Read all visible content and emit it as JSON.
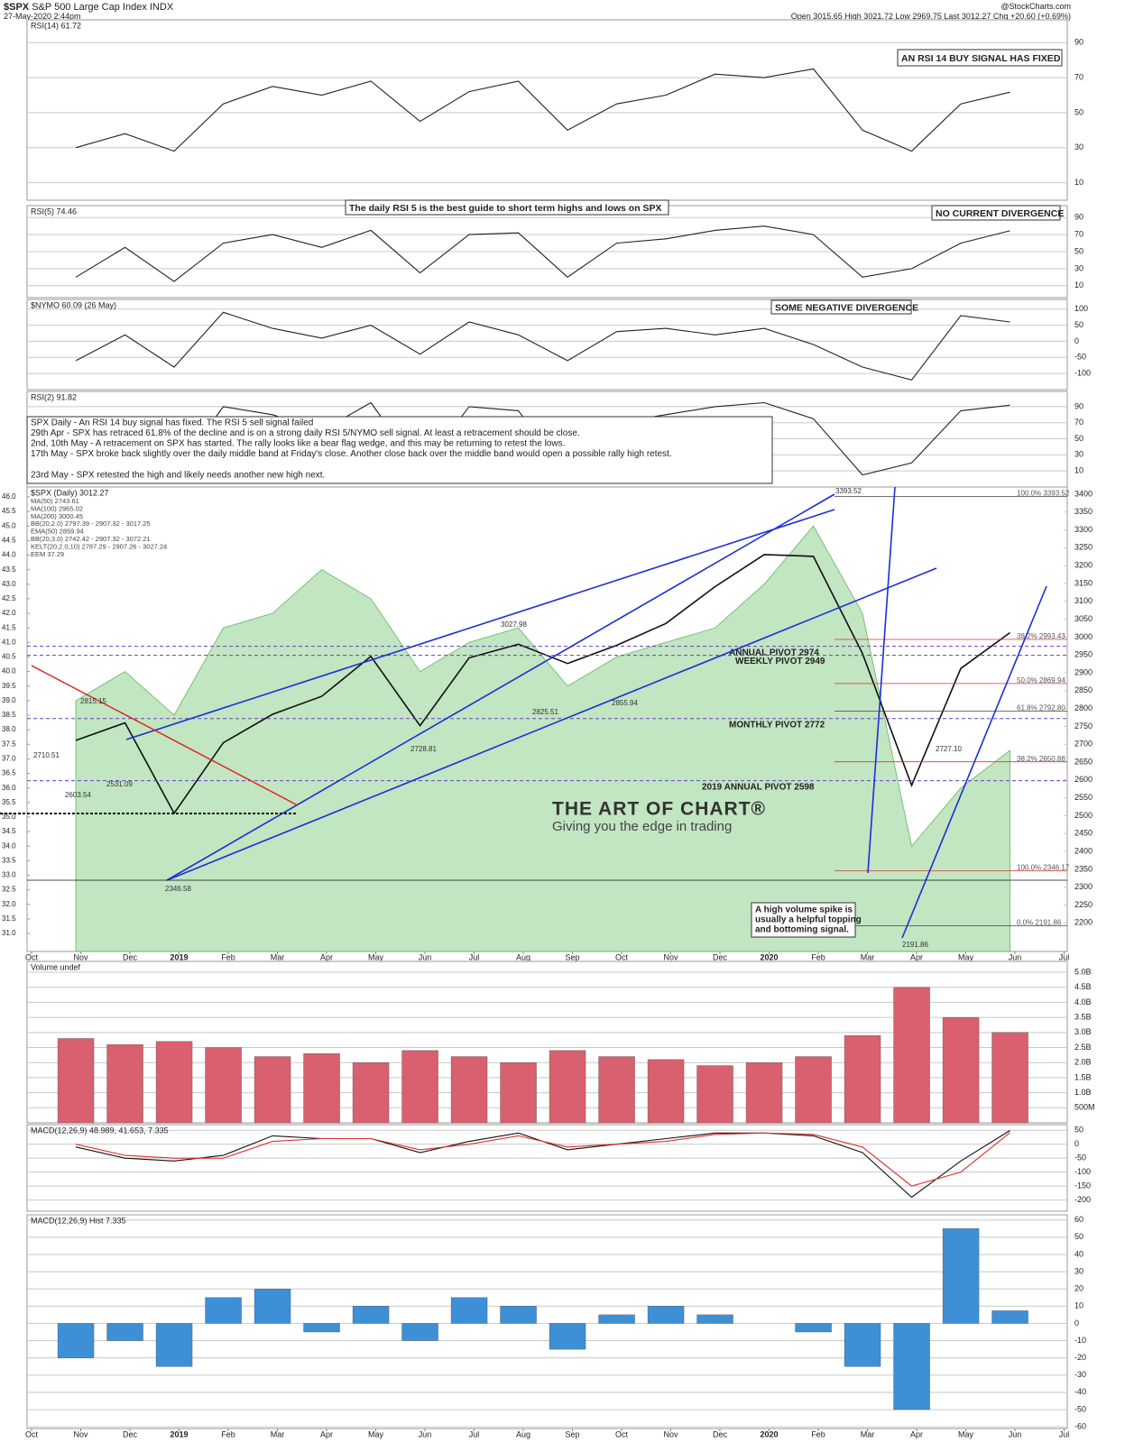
{
  "header": {
    "symbol": "$SPX",
    "name": "S&P 500 Large Cap Index INDX",
    "date": "27-May-2020 2:44pm",
    "source": "@StockCharts.com",
    "quote": "Open 3015.65  High 3021.72  Low 2969.75  Last 3012.27  Chg +20.60 (+0.69%)"
  },
  "commentary": [
    "SPX Daily - An RSI 14 buy signal has fixed. The RSI 5 sell signal failed",
    "29th Apr - SPX has retraced 61.8% of the decline and is on a strong daily RSI 5/NYMO sell signal. At least a retracement should be close.",
    "2nd, 10th May - A retracement on SPX has started. The rally looks like a bear flag wedge, and this may be returning to retest the lows.",
    "17th May - SPX broke back slightly over the daily middle band at Friday's close. Another close back over the middle band would open a possible rally high retest.",
    "23rd May - SPX retested the high and likely needs another new high next."
  ],
  "logo": {
    "title": "THE ART OF CHART®",
    "tagline": "Giving you the edge in trading"
  },
  "chart_data": [
    {
      "type": "line",
      "label": "RSI(14) 61.72",
      "ylim": [
        0,
        103
      ],
      "yticks": [
        10,
        30,
        50,
        70,
        90
      ],
      "grid": true,
      "series": [
        {
          "color": "#222222",
          "values": [
            30,
            38,
            28,
            55,
            65,
            60,
            68,
            45,
            62,
            68,
            40,
            55,
            60,
            72,
            70,
            75,
            40,
            28,
            55,
            61.72,
            null,
            null
          ]
        }
      ],
      "annotations": [
        "AN RSI 14 BUY SIGNAL HAS FIXED"
      ]
    },
    {
      "type": "line",
      "label": "RSI(5) 74.46",
      "ylim": [
        -4,
        104
      ],
      "yticks": [
        10,
        30,
        50,
        70,
        90
      ],
      "grid": true,
      "series": [
        {
          "color": "#222222",
          "values": [
            20,
            55,
            15,
            60,
            70,
            55,
            75,
            25,
            70,
            72,
            20,
            60,
            65,
            75,
            80,
            70,
            20,
            30,
            60,
            74.46,
            null,
            null
          ]
        }
      ],
      "annotations": [
        "The daily RSI 5 is the best guide to short term highs and lows on SPX",
        "NO CURRENT DIVERGENCE"
      ]
    },
    {
      "type": "line",
      "label": "$NYMO 60.09 (26 May)",
      "ylim": [
        -150,
        130
      ],
      "yticks": [
        -100,
        -50,
        0,
        50,
        100
      ],
      "grid": true,
      "series": [
        {
          "color": "#222222",
          "values": [
            -60,
            20,
            -80,
            90,
            40,
            10,
            50,
            -40,
            60,
            20,
            -60,
            30,
            40,
            20,
            40,
            -10,
            -80,
            -120,
            80,
            60.09,
            null,
            null
          ]
        }
      ],
      "annotations": [
        "SOME NEGATIVE DIVERGENCE"
      ]
    },
    {
      "type": "line",
      "label": "RSI(2) 91.82",
      "ylim": [
        -10,
        109
      ],
      "yticks": [
        10,
        30,
        50,
        70,
        90
      ],
      "grid": true,
      "series": [
        {
          "color": "#222222",
          "values": [
            10,
            70,
            5,
            90,
            80,
            60,
            95,
            10,
            90,
            85,
            5,
            70,
            80,
            90,
            95,
            75,
            5,
            20,
            85,
            91.82,
            null,
            null
          ]
        }
      ]
    },
    {
      "type": "line",
      "label": "$SPX (Daily) 3012.27",
      "legend": [
        "MA(50) 2743.61",
        "MA(100) 2965.02",
        "MA(200) 3000.45",
        "BB(20,2.0) 2797.39 - 2907.32 - 3017.25",
        "EMA(50) 2859.94",
        "BB(20,3.0) 2742.42 - 2907.32 - 3072.21",
        "KELT(20,2.0,10) 2787.29 - 2907.26 - 3027.24",
        "EEM 37.29"
      ],
      "categories": [
        "Oct",
        "Nov",
        "Dec",
        "2019",
        "Feb",
        "Mar",
        "Apr",
        "May",
        "Jun",
        "Jul",
        "Aug",
        "Sep",
        "Oct",
        "Nov",
        "Dec",
        "2020",
        "Feb",
        "Mar",
        "Apr",
        "May",
        "Jun",
        "Jul"
      ],
      "ylim": [
        2120,
        3420
      ],
      "yticks": [
        2200,
        2250,
        2300,
        2350,
        2400,
        2450,
        2500,
        2550,
        2600,
        2650,
        2700,
        2750,
        2800,
        2850,
        2900,
        2950,
        3000,
        3050,
        3100,
        3150,
        3200,
        3250,
        3300,
        3350,
        3400
      ],
      "y2lim": [
        30.38,
        46.34
      ],
      "y2ticks": [
        {
          "value": 31,
          "label": "31.0"
        },
        31.5,
        {
          "value": 32,
          "label": "32.0"
        },
        32.5,
        {
          "value": 33,
          "label": "33.0"
        },
        33.5,
        {
          "value": 34,
          "label": "34.0"
        },
        34.5,
        {
          "value": 35,
          "label": "35.0"
        },
        35.5,
        {
          "value": 36,
          "label": "36.0"
        },
        36.5,
        {
          "value": 37,
          "label": "37.0"
        },
        37.5,
        {
          "value": 38,
          "label": "38.0"
        },
        38.5,
        {
          "value": 39,
          "label": "39.0"
        },
        39.5,
        {
          "value": 40,
          "label": "40.0"
        },
        40.5,
        {
          "value": 41,
          "label": "41.0"
        },
        41.5,
        {
          "value": 42,
          "label": "42.0"
        },
        42.5,
        {
          "value": 43,
          "label": "43.0"
        },
        43.5,
        {
          "value": 44,
          "label": "44.0"
        },
        44.5,
        {
          "value": 45,
          "label": "45.0"
        },
        45.5,
        {
          "value": 46,
          "label": "46.0"
        }
      ],
      "grid": false,
      "series": [
        {
          "color": "#8fd08f",
          "axis": "y2",
          "area": true,
          "values": [
            39,
            40,
            38.5,
            41.5,
            42,
            43.5,
            42.5,
            40,
            41,
            41.5,
            39.5,
            40.5,
            41,
            41.5,
            43,
            45,
            42,
            34,
            36,
            37.29,
            null,
            null
          ]
        },
        {
          "color": "#111111",
          "values": [
            2711,
            2760,
            2507,
            2704,
            2784,
            2834,
            2946,
            2752,
            2942,
            2980,
            2926,
            2977,
            3038,
            3141,
            3231,
            3226,
            2954,
            2585,
            2912,
            3012.27,
            null,
            null
          ]
        }
      ],
      "pivots": [
        {
          "label": "ANNUAL PIVOT 2974",
          "value": 2974
        },
        {
          "label": "WEEKLY PIVOT 2949",
          "value": 2949
        },
        {
          "label": "MONTHLY PIVOT 2772",
          "value": 2772
        },
        {
          "label": "2019 ANNUAL PIVOT 2598",
          "value": 2598
        }
      ],
      "fib_levels": [
        {
          "label": "100.0% 3393.52",
          "value": 3393.52
        },
        {
          "label": "38.2% 2993.43",
          "value": 2993.43
        },
        {
          "label": "50.0% 2869.94",
          "value": 2869.94
        },
        {
          "label": "61.8% 2792.80",
          "value": 2792.8
        },
        {
          "label": "38.2% 2650.88",
          "value": 2650.88
        },
        {
          "label": "100.0% 2346.17",
          "value": 2346.17
        },
        {
          "label": "0.0% 2191.86",
          "value": 2191.86
        }
      ],
      "point_labels": [
        "3393.52",
        "2346.58",
        "2191.86",
        "2710.51",
        "2603.54",
        "2531.09",
        "2728.81",
        "3027.98",
        "2825.51",
        "2855.94",
        "2727.10",
        "2815.15"
      ],
      "annotations": [
        "A high volume spike is",
        "usually a helpful topping",
        "and bottoming signal."
      ]
    },
    {
      "type": "bar",
      "label": "Volume undef",
      "ylim": [
        0,
        5.36
      ],
      "yticks": [
        {
          "value": 0.5,
          "label": "500M"
        },
        {
          "value": 1,
          "label": "1.0B"
        },
        {
          "value": 1.5,
          "label": "1.5B"
        },
        {
          "value": 2,
          "label": "2.0B"
        },
        {
          "value": 2.5,
          "label": "2.5B"
        },
        {
          "value": 3,
          "label": "3.0B"
        },
        {
          "value": 3.5,
          "label": "3.5B"
        },
        {
          "value": 4,
          "label": "4.0B"
        },
        {
          "value": 4.5,
          "label": "4.5B"
        },
        {
          "value": 5,
          "label": "5.0B"
        }
      ],
      "grid": true,
      "series": [
        {
          "color": "#d9606e",
          "values": [
            2.8,
            2.6,
            2.7,
            2.5,
            2.2,
            2.3,
            2.0,
            2.4,
            2.2,
            2.0,
            2.4,
            2.2,
            2.1,
            1.9,
            2.0,
            2.2,
            2.9,
            4.5,
            3.5,
            3.0,
            null,
            null
          ]
        }
      ]
    },
    {
      "type": "line",
      "label": "MACD(12,26,9) 48.989, 41.653, 7.335",
      "ylim": [
        -240,
        70
      ],
      "yticks": [
        -200,
        -150,
        -100,
        -50,
        0,
        50
      ],
      "grid": true,
      "series": [
        {
          "color": "#111111",
          "values": [
            -10,
            -50,
            -60,
            -40,
            30,
            20,
            20,
            -30,
            10,
            40,
            -20,
            0,
            20,
            40,
            40,
            30,
            -30,
            -190,
            -60,
            48.989,
            null,
            null
          ]
        },
        {
          "color": "#e03030",
          "values": [
            0,
            -40,
            -50,
            -50,
            10,
            20,
            20,
            -20,
            0,
            30,
            -10,
            0,
            10,
            35,
            40,
            35,
            -10,
            -150,
            -100,
            41.653,
            null,
            null
          ]
        }
      ]
    },
    {
      "type": "bar",
      "label": "MACD(12,26,9) Hist 7.335",
      "categories": [
        "Oct",
        "Nov",
        "Dec",
        "2019",
        "Feb",
        "Mar",
        "Apr",
        "May",
        "Jun",
        "Jul",
        "Aug",
        "Sep",
        "Oct",
        "Nov",
        "Dec",
        "2020",
        "Feb",
        "Mar",
        "Apr",
        "May",
        "Jun",
        "Jul"
      ],
      "ylim": [
        -61,
        63
      ],
      "yticks": [
        -60,
        -50,
        -40,
        -30,
        -20,
        -10,
        0,
        10,
        20,
        30,
        40,
        50,
        60
      ],
      "grid": true,
      "series": [
        {
          "color": "#3d8fd6",
          "values": [
            -20,
            -10,
            -25,
            15,
            20,
            -5,
            10,
            -10,
            15,
            10,
            -15,
            5,
            10,
            5,
            0,
            -5,
            -25,
            -50,
            55,
            7.335,
            null,
            null
          ]
        }
      ]
    }
  ]
}
